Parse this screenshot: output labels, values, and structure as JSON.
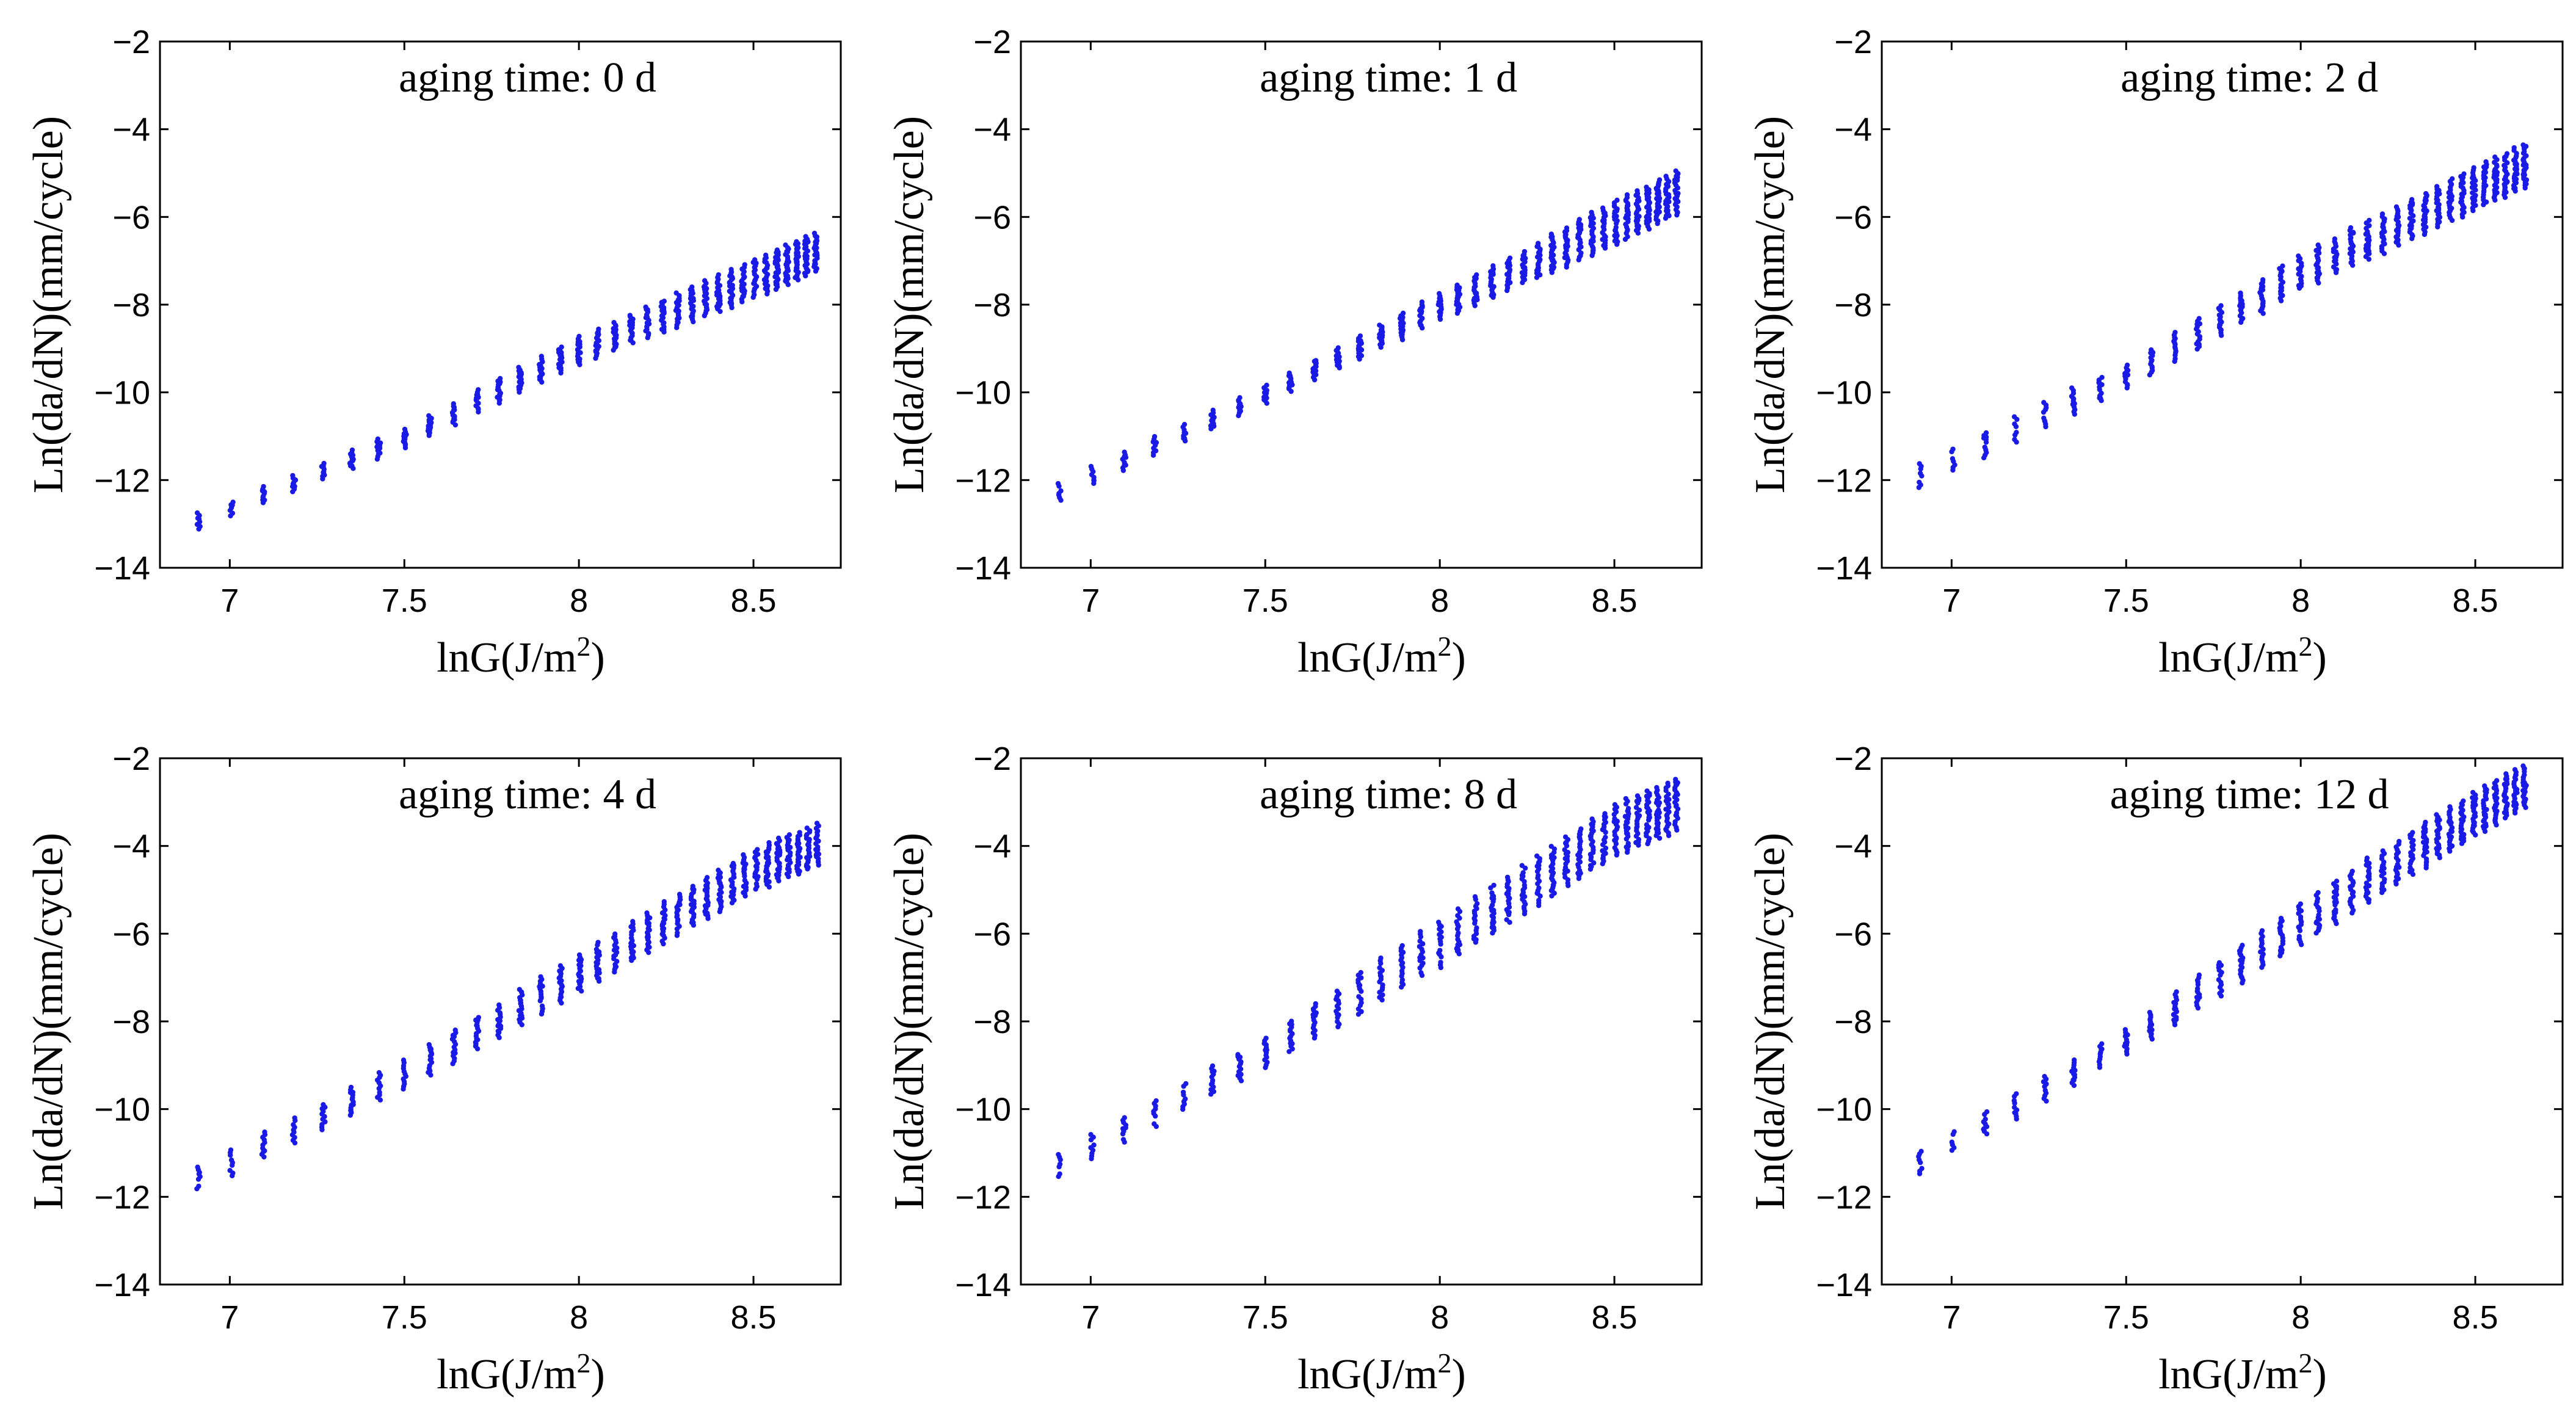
{
  "figure": {
    "rows": 2,
    "cols": 3
  },
  "chart_data": [
    {
      "type": "scatter",
      "title": "aging time: 0 d",
      "xlabel": "lnG(J/m",
      "xlabel_sup": "2",
      "xlabel_end": ")",
      "ylabel": "Ln(da/dN)(mm/cycle)",
      "xlim": [
        6.8,
        8.75
      ],
      "ylim": [
        -14,
        -2
      ],
      "xticks": [
        7,
        7.5,
        8,
        8.5
      ],
      "xtick_labels": [
        "7",
        "7.5",
        "8",
        "8.5"
      ],
      "yticks": [
        -14,
        -12,
        -10,
        -8,
        -6,
        -4,
        -2
      ],
      "ytick_labels": [
        "−14",
        "−12",
        "−10",
        "−8",
        "−6",
        "−4",
        "−2"
      ],
      "x_range": [
        6.91,
        8.68
      ],
      "band": [
        {
          "x": 6.91,
          "low": -13.1,
          "high": -12.7
        },
        {
          "x": 7.5,
          "low": -11.2,
          "high": -10.8
        },
        {
          "x": 8.0,
          "low": -9.3,
          "high": -8.7
        },
        {
          "x": 8.5,
          "low": -7.8,
          "high": -6.9
        },
        {
          "x": 8.68,
          "low": -7.2,
          "high": -6.3
        }
      ],
      "color": "#1a1ae6"
    },
    {
      "type": "scatter",
      "title": "aging time: 1 d",
      "xlabel": "lnG(J/m",
      "xlabel_sup": "2",
      "xlabel_end": ")",
      "ylabel": "Ln(da/dN)(mm/cycle)",
      "xlim": [
        6.8,
        8.75
      ],
      "ylim": [
        -14,
        -2
      ],
      "xticks": [
        7,
        7.5,
        8,
        8.5
      ],
      "xtick_labels": [
        "7",
        "7.5",
        "8",
        "8.5"
      ],
      "yticks": [
        -14,
        -12,
        -10,
        -8,
        -6,
        -4,
        -2
      ],
      "ytick_labels": [
        "−14",
        "−12",
        "−10",
        "−8",
        "−6",
        "−4",
        "−2"
      ],
      "x_range": [
        6.91,
        8.68
      ],
      "band": [
        {
          "x": 6.91,
          "low": -12.4,
          "high": -12.0
        },
        {
          "x": 7.5,
          "low": -10.2,
          "high": -9.8
        },
        {
          "x": 8.0,
          "low": -8.3,
          "high": -7.7
        },
        {
          "x": 8.5,
          "low": -6.6,
          "high": -5.6
        },
        {
          "x": 8.68,
          "low": -5.9,
          "high": -4.9
        }
      ],
      "color": "#1a1ae6"
    },
    {
      "type": "scatter",
      "title": "aging time: 2 d",
      "xlabel": "lnG(J/m",
      "xlabel_sup": "2",
      "xlabel_end": ")",
      "ylabel": "Ln(da/dN)(mm/cycle)",
      "xlim": [
        6.8,
        8.75
      ],
      "ylim": [
        -14,
        -2
      ],
      "xticks": [
        7,
        7.5,
        8,
        8.5
      ],
      "xtick_labels": [
        "7",
        "7.5",
        "8",
        "8.5"
      ],
      "yticks": [
        -14,
        -12,
        -10,
        -8,
        -6,
        -4,
        -2
      ],
      "ytick_labels": [
        "−14",
        "−12",
        "−10",
        "−8",
        "−6",
        "−4",
        "−2"
      ],
      "x_range": [
        6.91,
        8.66
      ],
      "band": [
        {
          "x": 6.91,
          "low": -12.1,
          "high": -11.5
        },
        {
          "x": 7.5,
          "low": -9.9,
          "high": -9.3
        },
        {
          "x": 8.0,
          "low": -7.6,
          "high": -6.8
        },
        {
          "x": 8.5,
          "low": -5.8,
          "high": -4.8
        },
        {
          "x": 8.66,
          "low": -5.2,
          "high": -4.2
        }
      ],
      "color": "#1a1ae6"
    },
    {
      "type": "scatter",
      "title": "aging time: 4 d",
      "xlabel": "lnG(J/m",
      "xlabel_sup": "2",
      "xlabel_end": ")",
      "ylabel": "Ln(da/dN)(mm/cycle)",
      "xlim": [
        6.8,
        8.75
      ],
      "ylim": [
        -14,
        -2
      ],
      "xticks": [
        7,
        7.5,
        8,
        8.5
      ],
      "xtick_labels": [
        "7",
        "7.5",
        "8",
        "8.5"
      ],
      "yticks": [
        -14,
        -12,
        -10,
        -8,
        -6,
        -4,
        -2
      ],
      "ytick_labels": [
        "−14",
        "−12",
        "−10",
        "−8",
        "−6",
        "−4",
        "−2"
      ],
      "x_range": [
        6.91,
        8.69
      ],
      "band": [
        {
          "x": 6.91,
          "low": -11.8,
          "high": -11.2
        },
        {
          "x": 7.5,
          "low": -9.5,
          "high": -8.8
        },
        {
          "x": 8.0,
          "low": -7.3,
          "high": -6.4
        },
        {
          "x": 8.5,
          "low": -5.0,
          "high": -4.0
        },
        {
          "x": 8.69,
          "low": -4.4,
          "high": -3.4
        }
      ],
      "color": "#1a1ae6"
    },
    {
      "type": "scatter",
      "title": "aging time: 8 d",
      "xlabel": "lnG(J/m",
      "xlabel_sup": "2",
      "xlabel_end": ")",
      "ylabel": "Ln(da/dN)(mm/cycle)",
      "xlim": [
        6.8,
        8.75
      ],
      "ylim": [
        -14,
        -2
      ],
      "xticks": [
        7,
        7.5,
        8,
        8.5
      ],
      "xtick_labels": [
        "7",
        "7.5",
        "8",
        "8.5"
      ],
      "yticks": [
        -14,
        -12,
        -10,
        -8,
        -6,
        -4,
        -2
      ],
      "ytick_labels": [
        "−14",
        "−12",
        "−10",
        "−8",
        "−6",
        "−4",
        "−2"
      ],
      "x_range": [
        6.91,
        8.68
      ],
      "band": [
        {
          "x": 6.91,
          "low": -11.5,
          "high": -10.9
        },
        {
          "x": 7.5,
          "low": -9.0,
          "high": -8.3
        },
        {
          "x": 8.0,
          "low": -6.7,
          "high": -5.6
        },
        {
          "x": 8.5,
          "low": -4.2,
          "high": -3.0
        },
        {
          "x": 8.68,
          "low": -3.6,
          "high": -2.4
        }
      ],
      "color": "#1a1ae6"
    },
    {
      "type": "scatter",
      "title": "aging time: 12 d",
      "xlabel": "lnG(J/m",
      "xlabel_sup": "2",
      "xlabel_end": ")",
      "ylabel": "Ln(da/dN)(mm/cycle)",
      "xlim": [
        6.8,
        8.75
      ],
      "ylim": [
        -14,
        -2
      ],
      "xticks": [
        7,
        7.5,
        8,
        8.5
      ],
      "xtick_labels": [
        "7",
        "7.5",
        "8",
        "8.5"
      ],
      "yticks": [
        -14,
        -12,
        -10,
        -8,
        -6,
        -4,
        -2
      ],
      "ytick_labels": [
        "−14",
        "−12",
        "−10",
        "−8",
        "−6",
        "−4",
        "−2"
      ],
      "x_range": [
        6.91,
        8.66
      ],
      "band": [
        {
          "x": 6.91,
          "low": -11.4,
          "high": -10.8
        },
        {
          "x": 7.5,
          "low": -8.7,
          "high": -8.1
        },
        {
          "x": 8.0,
          "low": -6.2,
          "high": -5.2
        },
        {
          "x": 8.5,
          "low": -3.7,
          "high": -2.7
        },
        {
          "x": 8.66,
          "low": -3.0,
          "high": -2.0
        }
      ],
      "color": "#1a1ae6"
    }
  ]
}
